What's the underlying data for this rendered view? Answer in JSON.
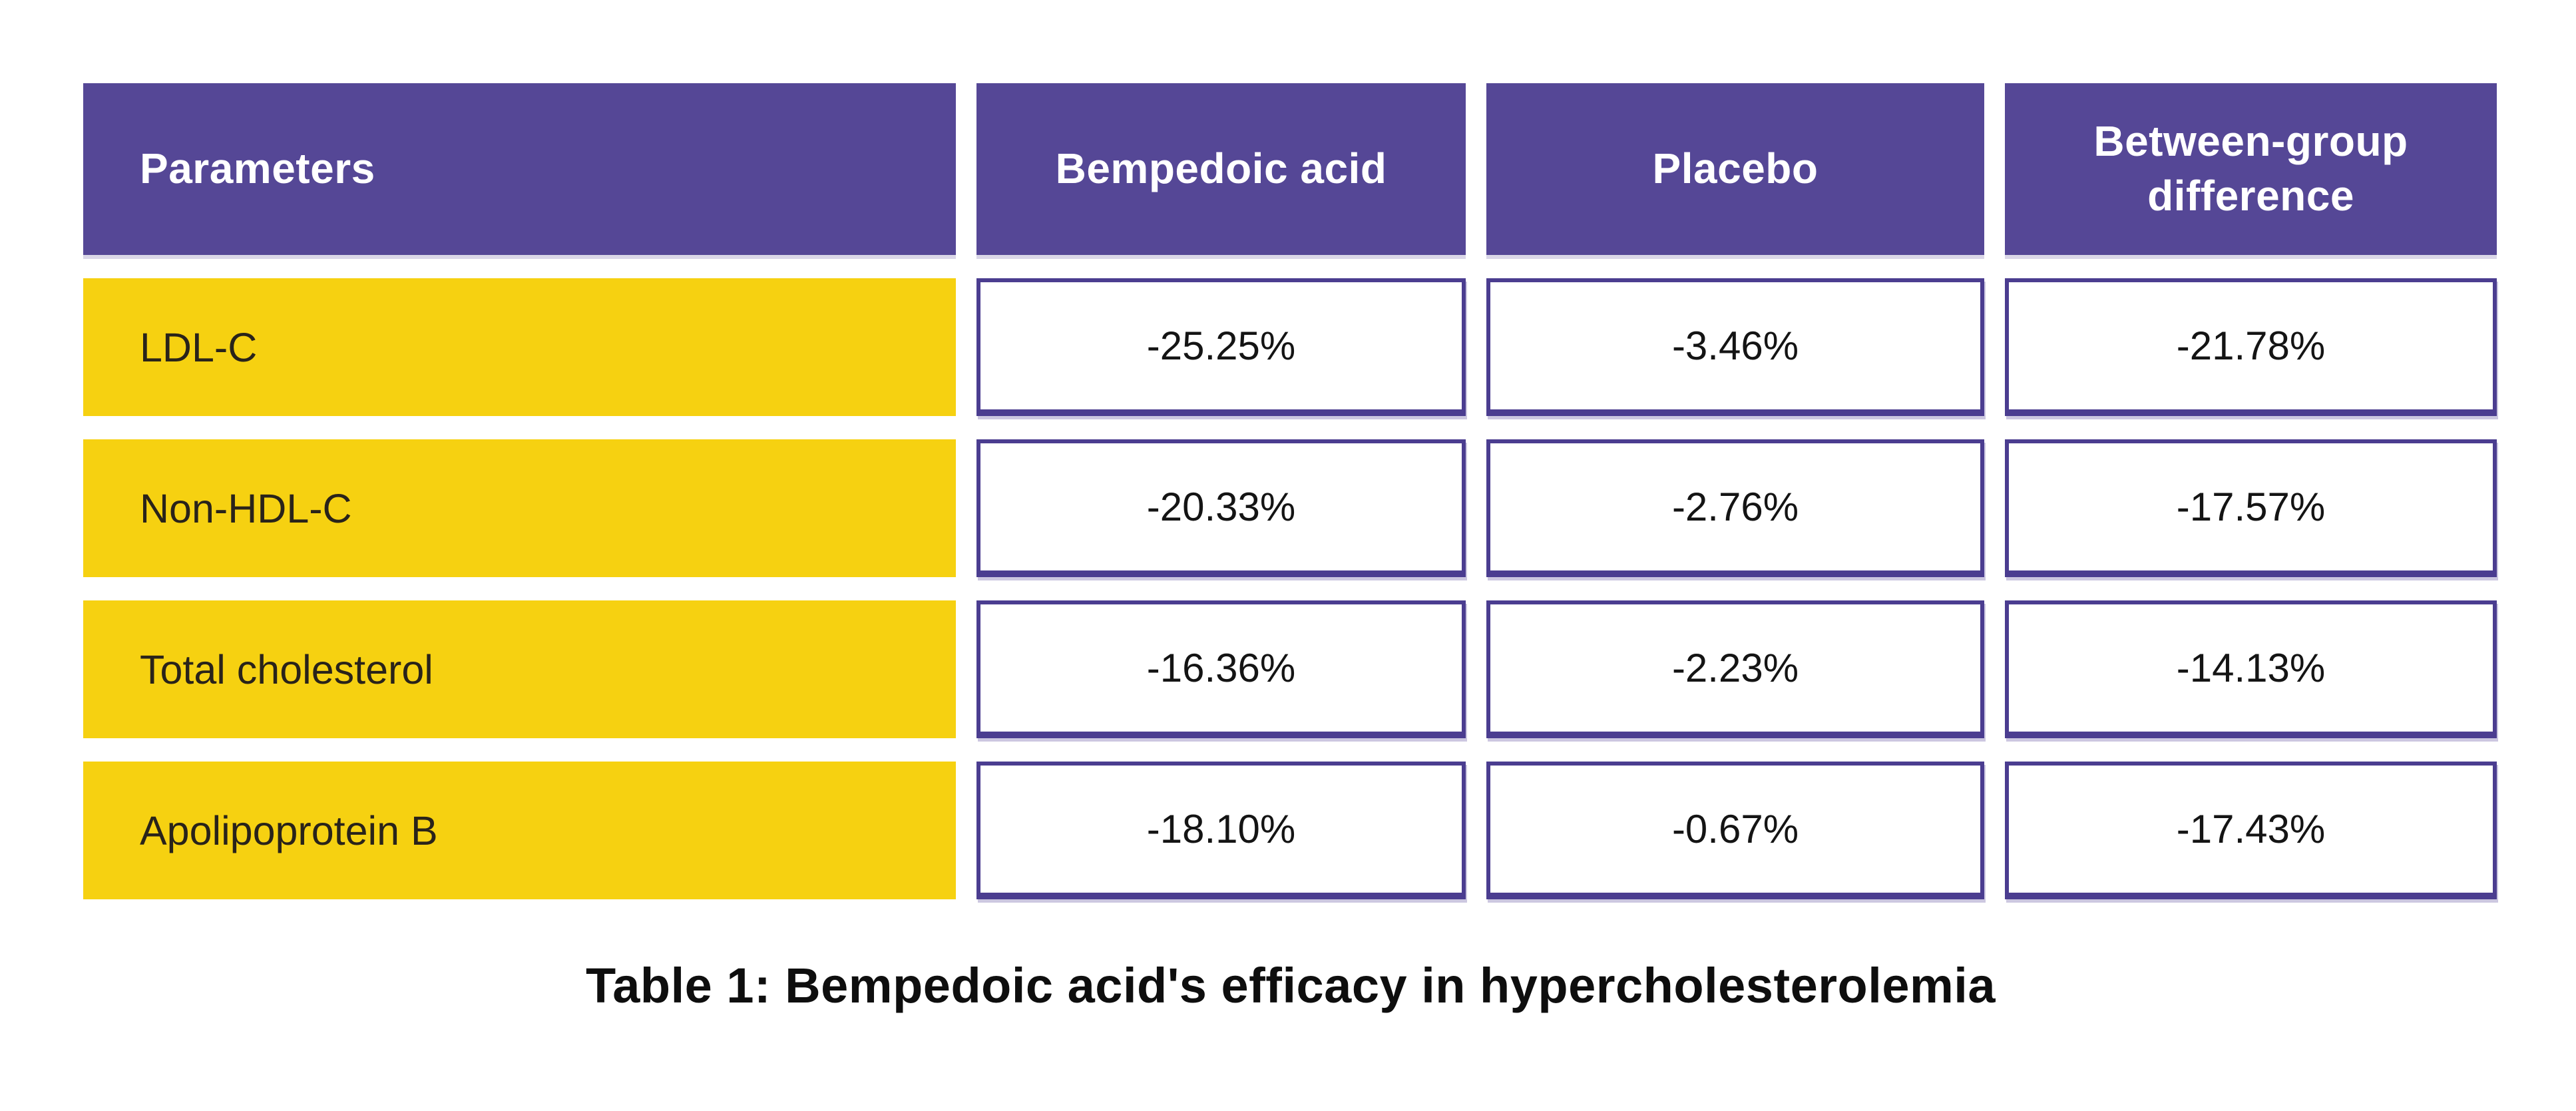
{
  "colors": {
    "header_bg": "#554796",
    "row_label_bg": "#F6D111",
    "value_border": "#4b3d90",
    "header_text": "#ffffff",
    "body_text": "#141414"
  },
  "table": {
    "columns": [
      {
        "label": "Parameters"
      },
      {
        "label": "Bempedoic acid"
      },
      {
        "label": "Placebo"
      },
      {
        "label": "Between-group difference"
      }
    ],
    "rows": [
      {
        "parameter": "LDL-C",
        "values": [
          "-25.25%",
          "-3.46%",
          "-21.78%"
        ]
      },
      {
        "parameter": "Non-HDL-C",
        "values": [
          "-20.33%",
          "-2.76%",
          "-17.57%"
        ]
      },
      {
        "parameter": "Total cholesterol",
        "values": [
          "-16.36%",
          "-2.23%",
          "-14.13%"
        ]
      },
      {
        "parameter": "Apolipoprotein B",
        "values": [
          "-18.10%",
          "-0.67%",
          "-17.43%"
        ]
      }
    ],
    "caption": "Table 1: Bempedoic acid's efficacy in hypercholesterolemia"
  },
  "chart_data": {
    "type": "table",
    "title": "Table 1: Bempedoic acid's efficacy in hypercholesterolemia",
    "columns": [
      "Parameters",
      "Bempedoic acid",
      "Placebo",
      "Between-group difference"
    ],
    "rows": [
      [
        "LDL-C",
        -25.25,
        -3.46,
        -21.78
      ],
      [
        "Non-HDL-C",
        -20.33,
        -2.76,
        -17.57
      ],
      [
        "Total cholesterol",
        -16.36,
        -2.23,
        -14.13
      ],
      [
        "Apolipoprotein B",
        -18.1,
        -0.67,
        -17.43
      ]
    ],
    "value_format": "percent change"
  }
}
